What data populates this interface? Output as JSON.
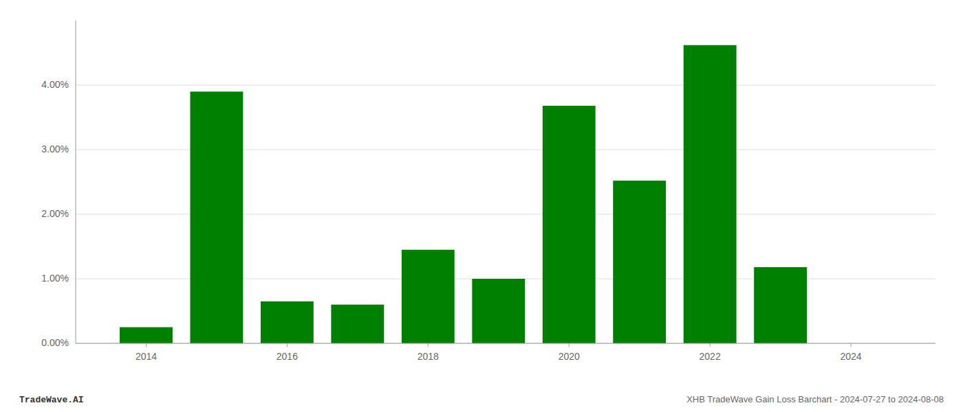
{
  "chart_data": {
    "type": "bar",
    "x": [
      2014,
      2015,
      2016,
      2017,
      2018,
      2019,
      2020,
      2021,
      2022,
      2023,
      2024
    ],
    "values": [
      0.0025,
      0.039,
      0.0065,
      0.006,
      0.0145,
      0.01,
      0.0368,
      0.0252,
      0.0462,
      0.0118,
      0.0
    ],
    "color": "#008000",
    "xlim": [
      2013.0,
      2025.2
    ],
    "xticks": [
      2014,
      2016,
      2018,
      2020,
      2022,
      2024
    ],
    "ylim": [
      0,
      0.05
    ],
    "yticks": [
      {
        "value": 0.0,
        "label": "0.00%"
      },
      {
        "value": 0.01,
        "label": "1.00%"
      },
      {
        "value": 0.02,
        "label": "2.00%"
      },
      {
        "value": 0.03,
        "label": "3.00%"
      },
      {
        "value": 0.04,
        "label": "4.00%"
      }
    ],
    "grid": true,
    "annotations": [
      "TradeWave.AI",
      "XHB TradeWave Gain Loss Barchart - 2024-07-27 to 2024-08-08"
    ]
  }
}
